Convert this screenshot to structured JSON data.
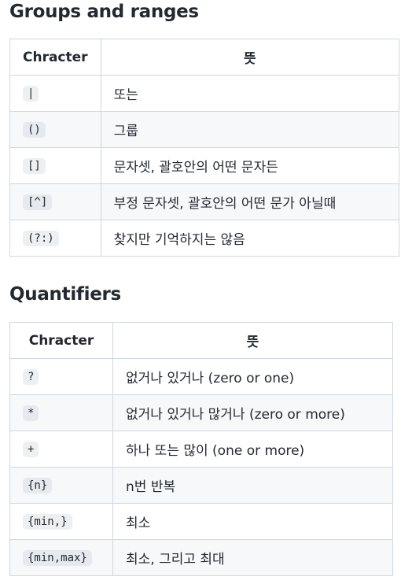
{
  "groups": {
    "title": "Groups and ranges",
    "headers": {
      "character": "Chracter",
      "meaning": "뜻"
    },
    "rows": [
      {
        "char": "|",
        "meaning": "또는"
      },
      {
        "char": "()",
        "meaning": "그룹"
      },
      {
        "char": "[]",
        "meaning": "문자셋, 괄호안의 어떤 문자든"
      },
      {
        "char": "[^]",
        "meaning": "부정 문자셋, 괄호안의 어떤 문가 아닐때"
      },
      {
        "char": "(?:)",
        "meaning": "찾지만 기억하지는 않음"
      }
    ]
  },
  "quantifiers": {
    "title": "Quantifiers",
    "headers": {
      "character": "Chracter",
      "meaning": "뜻"
    },
    "rows": [
      {
        "char": "?",
        "meaning": "없거나 있거나 (zero or one)"
      },
      {
        "char": "*",
        "meaning": "없거나 있거나 많거나 (zero or more)"
      },
      {
        "char": "+",
        "meaning": "하나 또는 많이 (one or more)"
      },
      {
        "char": "{n}",
        "meaning": "n번 반복"
      },
      {
        "char": "{min,}",
        "meaning": "최소"
      },
      {
        "char": "{min,max}",
        "meaning": "최소, 그리고 최대"
      }
    ]
  }
}
